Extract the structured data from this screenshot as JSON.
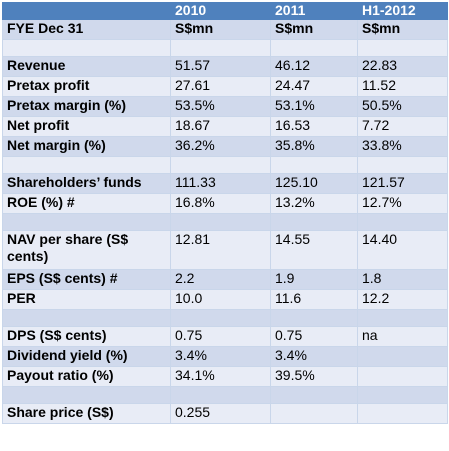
{
  "table": {
    "header": [
      "",
      "2010",
      "2011",
      "H1-2012"
    ],
    "rows": [
      {
        "kind": "data",
        "cells": [
          "FYE Dec 31",
          "S$mn",
          "S$mn",
          "S$mn"
        ]
      },
      {
        "kind": "spacer",
        "cells": [
          "",
          "",
          "",
          ""
        ]
      },
      {
        "kind": "data",
        "cells": [
          "Revenue",
          "51.57",
          "46.12",
          "22.83"
        ]
      },
      {
        "kind": "data",
        "cells": [
          "Pretax profit",
          "27.61",
          "24.47",
          "11.52"
        ]
      },
      {
        "kind": "data",
        "cells": [
          "Pretax margin (%)",
          "53.5%",
          "53.1%",
          "50.5%"
        ]
      },
      {
        "kind": "data",
        "cells": [
          "Net profit",
          "18.67",
          "16.53",
          "7.72"
        ]
      },
      {
        "kind": "data",
        "cells": [
          "Net margin (%)",
          "36.2%",
          "35.8%",
          "33.8%"
        ]
      },
      {
        "kind": "spacer",
        "cells": [
          "",
          "",
          "",
          ""
        ]
      },
      {
        "kind": "data",
        "cells": [
          "Shareholders’ funds",
          "111.33",
          "125.10",
          "121.57"
        ]
      },
      {
        "kind": "data",
        "cells": [
          "ROE (%) #",
          "16.8%",
          "13.2%",
          "12.7%"
        ]
      },
      {
        "kind": "spacer",
        "cells": [
          "",
          "",
          "",
          ""
        ]
      },
      {
        "kind": "tall",
        "cells": [
          "NAV per share (S$ cents)",
          "12.81",
          "14.55",
          "14.40"
        ]
      },
      {
        "kind": "data",
        "cells": [
          "EPS (S$ cents) #",
          "2.2",
          "1.9",
          "1.8"
        ]
      },
      {
        "kind": "data",
        "cells": [
          "PER",
          "10.0",
          "11.6",
          "12.2"
        ]
      },
      {
        "kind": "spacer",
        "cells": [
          "",
          "",
          "",
          ""
        ]
      },
      {
        "kind": "data",
        "cells": [
          "DPS (S$ cents)",
          "0.75",
          "0.75",
          "na"
        ]
      },
      {
        "kind": "data",
        "cells": [
          "Dividend yield (%)",
          "3.4%",
          "3.4%",
          ""
        ]
      },
      {
        "kind": "data",
        "cells": [
          "Payout ratio (%)",
          "34.1%",
          "39.5%",
          ""
        ]
      },
      {
        "kind": "spacer",
        "cells": [
          "",
          "",
          "",
          ""
        ]
      },
      {
        "kind": "data",
        "cells": [
          "Share price (S$)",
          "0.255",
          "",
          ""
        ]
      }
    ]
  },
  "colors": {
    "header_bg": "#4f81bd",
    "header_text": "#ffffff",
    "row_light": "#e8ecf6",
    "row_dark": "#d0d9ec",
    "border": "#c9d6ea"
  }
}
